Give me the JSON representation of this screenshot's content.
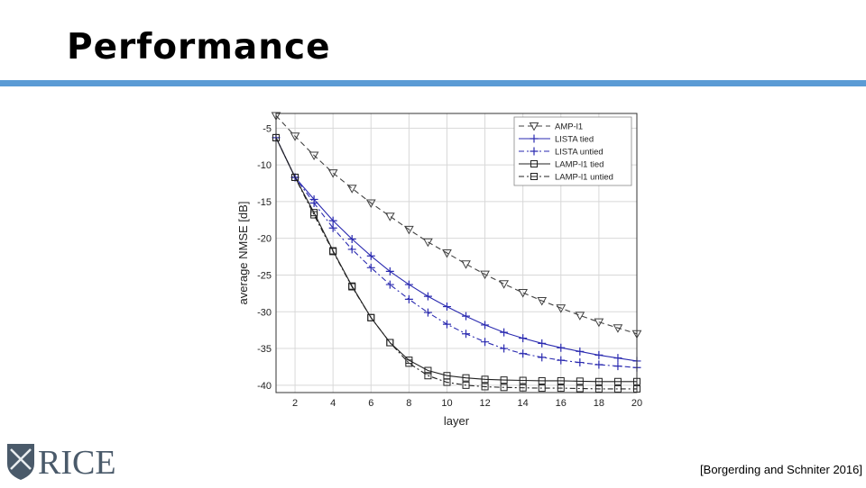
{
  "slide": {
    "title": "Performance",
    "citation": "[Borgerding and Schniter 2016]",
    "logo_text": "RICE",
    "accent_color": "#5b9bd5"
  },
  "chart_data": {
    "type": "line",
    "title": "",
    "xlabel": "layer",
    "ylabel": "average NMSE [dB]",
    "xlim": [
      1,
      20
    ],
    "ylim": [
      -41,
      -3
    ],
    "xticks": [
      2,
      4,
      6,
      8,
      10,
      12,
      14,
      16,
      18,
      20
    ],
    "yticks": [
      -5,
      -10,
      -15,
      -20,
      -25,
      -30,
      -35,
      -40
    ],
    "grid": true,
    "legend_position": "top-right",
    "x": [
      1,
      2,
      3,
      4,
      5,
      6,
      7,
      8,
      9,
      10,
      11,
      12,
      13,
      14,
      15,
      16,
      17,
      18,
      19,
      20
    ],
    "series": [
      {
        "name": "AMP-l1",
        "color": "#404040",
        "dash": "dashed",
        "marker": "triangle-down",
        "values": [
          -3.3,
          -6.1,
          -8.7,
          -11.1,
          -13.2,
          -15.2,
          -17.0,
          -18.8,
          -20.5,
          -22.0,
          -23.5,
          -24.9,
          -26.2,
          -27.4,
          -28.5,
          -29.5,
          -30.5,
          -31.4,
          -32.2,
          -33.0
        ]
      },
      {
        "name": "LISTA tied",
        "color": "#2a2ab0",
        "dash": "solid",
        "marker": "plus",
        "values": [
          -6.3,
          -11.7,
          -14.7,
          -17.6,
          -20.1,
          -22.4,
          -24.5,
          -26.3,
          -27.9,
          -29.3,
          -30.6,
          -31.8,
          -32.8,
          -33.6,
          -34.3,
          -34.9,
          -35.4,
          -35.9,
          -36.3,
          -36.7
        ]
      },
      {
        "name": "LISTA untied",
        "color": "#2a2ab0",
        "dash": "dashdot",
        "marker": "plus",
        "values": [
          -6.3,
          -11.7,
          -15.2,
          -18.6,
          -21.5,
          -24.0,
          -26.3,
          -28.3,
          -30.1,
          -31.7,
          -33.0,
          -34.1,
          -35.0,
          -35.7,
          -36.2,
          -36.6,
          -36.9,
          -37.2,
          -37.4,
          -37.6
        ]
      },
      {
        "name": "LAMP-l1 tied",
        "color": "#202020",
        "dash": "solid",
        "marker": "square",
        "values": [
          -6.3,
          -11.7,
          -16.5,
          -21.7,
          -26.5,
          -30.8,
          -34.2,
          -36.6,
          -38.0,
          -38.7,
          -39.0,
          -39.2,
          -39.3,
          -39.35,
          -39.4,
          -39.4,
          -39.45,
          -39.5,
          -39.5,
          -39.5
        ]
      },
      {
        "name": "LAMP-l1 untied",
        "color": "#202020",
        "dash": "dashdot",
        "marker": "square",
        "values": [
          -6.3,
          -11.7,
          -16.8,
          -21.8,
          -26.6,
          -30.8,
          -34.2,
          -37.0,
          -38.7,
          -39.6,
          -40.0,
          -40.2,
          -40.3,
          -40.35,
          -40.4,
          -40.4,
          -40.45,
          -40.5,
          -40.5,
          -40.5
        ]
      }
    ]
  }
}
